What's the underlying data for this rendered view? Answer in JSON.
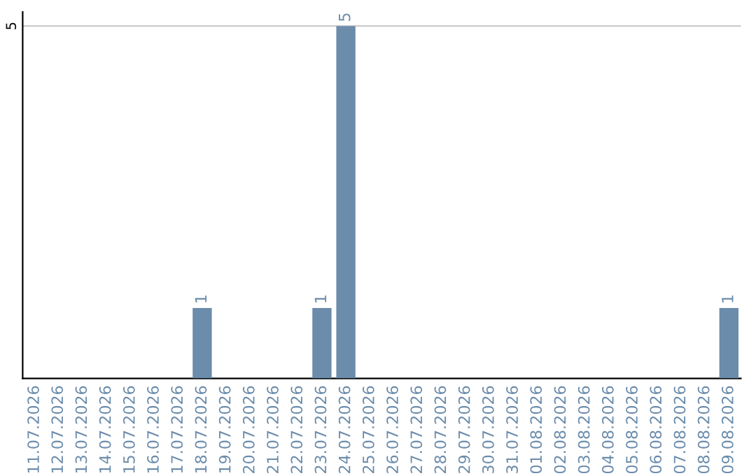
{
  "chart_data": {
    "type": "bar",
    "categories": [
      "11.07.2026",
      "12.07.2026",
      "13.07.2026",
      "14.07.2026",
      "15.07.2026",
      "16.07.2026",
      "17.07.2026",
      "18.07.2026",
      "19.07.2026",
      "20.07.2026",
      "21.07.2026",
      "22.07.2026",
      "23.07.2026",
      "24.07.2026",
      "25.07.2026",
      "26.07.2026",
      "27.07.2026",
      "28.07.2026",
      "29.07.2026",
      "30.07.2026",
      "31.07.2026",
      "01.08.2026",
      "02.08.2026",
      "03.08.2026",
      "04.08.2026",
      "05.08.2026",
      "06.08.2026",
      "07.08.2026",
      "08.08.2026",
      "09.08.2026"
    ],
    "values": [
      0,
      0,
      0,
      0,
      0,
      0,
      0,
      1,
      0,
      0,
      0,
      0,
      1,
      5,
      0,
      0,
      0,
      0,
      0,
      0,
      0,
      0,
      0,
      0,
      0,
      0,
      0,
      0,
      0,
      1
    ],
    "value_labels": [
      null,
      null,
      null,
      null,
      null,
      null,
      null,
      "1",
      null,
      null,
      null,
      null,
      "1",
      "5",
      null,
      null,
      null,
      null,
      null,
      null,
      null,
      null,
      null,
      null,
      null,
      null,
      null,
      null,
      null,
      "1"
    ],
    "color": "#6b8cab",
    "ylim": [
      0,
      5.2
    ],
    "yticks": [
      5
    ],
    "grid": "y"
  }
}
